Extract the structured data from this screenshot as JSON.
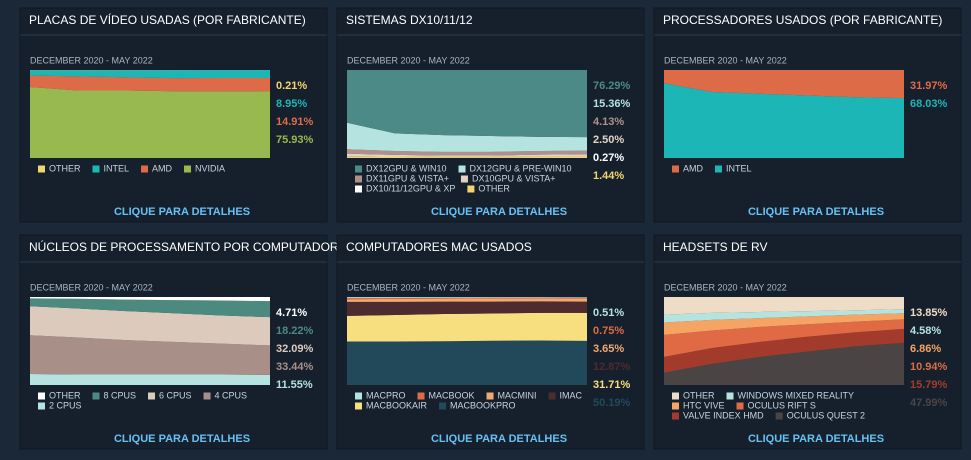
{
  "chart_data": [
    {
      "type": "stacked-area",
      "title": "PLACAS DE VÍDEO USADAS (POR FABRICANTE)",
      "subtitle": "DECEMBER 2020 - MAY 2022",
      "link": "CLIQUE PARA DETALHES",
      "categories": [
        null,
        null,
        null,
        null,
        null,
        null
      ],
      "ylim": [
        0,
        100
      ],
      "series": [
        {
          "name": "OTHER",
          "color": "#f2d66b",
          "values": [
            0.3,
            0.3,
            0.3,
            0.2,
            0.2,
            0.21
          ],
          "value_labels": [
            null,
            null,
            null,
            null,
            null,
            "0.21%"
          ]
        },
        {
          "name": "INTEL",
          "color": "#1cb6b6",
          "values": [
            6,
            7,
            8,
            9,
            8.9,
            8.95
          ],
          "value_labels": [
            null,
            null,
            null,
            null,
            null,
            "8.95%"
          ]
        },
        {
          "name": "AMD",
          "color": "#de6b47",
          "values": [
            13,
            16,
            15,
            15,
            15,
            14.91
          ],
          "value_labels": [
            null,
            null,
            null,
            null,
            null,
            "14.91%"
          ]
        },
        {
          "name": "NVIDIA",
          "color": "#98b94f",
          "values": [
            80.7,
            76.7,
            76.7,
            75.8,
            75.9,
            75.93
          ],
          "value_labels": [
            null,
            null,
            null,
            null,
            null,
            "75.93%"
          ]
        }
      ]
    },
    {
      "type": "stacked-area",
      "title": "SISTEMAS DX10/11/12",
      "subtitle": "DECEMBER 2020 - MAY 2022",
      "link": "CLIQUE PARA DETALHES",
      "categories": [
        null,
        null,
        null,
        null,
        null,
        null
      ],
      "ylim": [
        0,
        100
      ],
      "series": [
        {
          "name": "DX12GPU & WIN10",
          "color": "#4c8a87",
          "values": [
            60,
            72,
            74,
            75,
            76,
            76.29
          ],
          "value_labels": [
            null,
            null,
            null,
            null,
            null,
            "76.29%"
          ]
        },
        {
          "name": "DX12GPU & PRE-WIN10",
          "color": "#b5e3e0",
          "values": [
            30,
            20,
            19,
            18,
            16,
            15.36
          ],
          "value_labels": [
            null,
            null,
            null,
            null,
            null,
            "15.36%"
          ]
        },
        {
          "name": "DX11GPU & VISTA+",
          "color": "#b0918a",
          "values": [
            5,
            4.5,
            4.2,
            4.2,
            4.1,
            4.13
          ],
          "value_labels": [
            null,
            null,
            null,
            null,
            null,
            "4.13%"
          ]
        },
        {
          "name": "DX10GPU & VISTA+",
          "color": "#e3d3c4",
          "values": [
            3,
            2,
            1.5,
            1.5,
            2.5,
            2.5
          ],
          "value_labels": [
            null,
            null,
            null,
            null,
            null,
            "2.50%"
          ]
        },
        {
          "name": "DX10/11/12GPU & XP",
          "color": "#ffffff",
          "values": [
            0.5,
            0.4,
            0.3,
            0.3,
            0.3,
            0.27
          ],
          "value_labels": [
            null,
            null,
            null,
            null,
            null,
            "0.27%"
          ]
        },
        {
          "name": "OTHER",
          "color": "#f2d66b",
          "values": [
            1.5,
            1.1,
            1,
            1,
            1.1,
            1.44
          ],
          "value_labels": [
            null,
            null,
            null,
            null,
            null,
            "1.44%"
          ]
        }
      ]
    },
    {
      "type": "stacked-area",
      "title": "PROCESSADORES USADOS (POR FABRICANTE)",
      "subtitle": "DECEMBER 2020 - MAY 2022",
      "link": "CLIQUE PARA DETALHES",
      "categories": [
        null,
        null,
        null,
        null,
        null,
        null
      ],
      "ylim": [
        0,
        100
      ],
      "series": [
        {
          "name": "AMD",
          "color": "#de6b47",
          "values": [
            15,
            25,
            27,
            29,
            31,
            31.97
          ],
          "value_labels": [
            null,
            null,
            null,
            null,
            null,
            "31.97%"
          ]
        },
        {
          "name": "INTEL",
          "color": "#1cb6b6",
          "values": [
            85,
            75,
            73,
            71,
            69,
            68.03
          ],
          "value_labels": [
            null,
            null,
            null,
            null,
            null,
            "68.03%"
          ]
        }
      ]
    },
    {
      "type": "stacked-area",
      "title": "NÚCLEOS DE PROCESSAMENTO POR COMPUTADOR",
      "subtitle": "DECEMBER 2020 - MAY 2022",
      "link": "CLIQUE PARA DETALHES",
      "categories": [
        null,
        null,
        null,
        null,
        null,
        null
      ],
      "ylim": [
        0,
        100
      ],
      "series": [
        {
          "name": "OTHER",
          "color": "#ffffff",
          "values": [
            1.5,
            2,
            3,
            3.5,
            4,
            4.71
          ],
          "value_labels": [
            null,
            null,
            null,
            null,
            null,
            "4.71%"
          ]
        },
        {
          "name": "8 CPUS",
          "color": "#4c8a80",
          "values": [
            9,
            11,
            13,
            15,
            17,
            18.22
          ],
          "value_labels": [
            null,
            null,
            null,
            null,
            null,
            "18.22%"
          ]
        },
        {
          "name": "6 CPUS",
          "color": "#dccabd",
          "values": [
            33,
            33,
            33,
            32.5,
            32,
            32.09
          ],
          "value_labels": [
            null,
            null,
            null,
            null,
            null,
            "32.09%"
          ]
        },
        {
          "name": "4 CPUS",
          "color": "#a88f88",
          "values": [
            44,
            42,
            39,
            37,
            35,
            33.44
          ],
          "value_labels": [
            null,
            null,
            null,
            null,
            null,
            "33.44%"
          ]
        },
        {
          "name": "2 CPUS",
          "color": "#b5e3e0",
          "values": [
            12.5,
            12,
            12,
            12,
            12,
            11.55
          ],
          "value_labels": [
            null,
            null,
            null,
            null,
            null,
            "11.55%"
          ]
        }
      ]
    },
    {
      "type": "stacked-area",
      "title": "COMPUTADORES MAC USADOS",
      "subtitle": "DECEMBER 2020 - MAY 2022",
      "link": "CLIQUE PARA DETALHES",
      "categories": [
        null,
        null,
        null,
        null,
        null,
        null
      ],
      "ylim": [
        0,
        100
      ],
      "series": [
        {
          "name": "MACPRO",
          "color": "#b5e3e0",
          "values": [
            1,
            1,
            0.8,
            0.7,
            0.6,
            0.51
          ],
          "value_labels": [
            null,
            null,
            null,
            null,
            null,
            "0.51%"
          ]
        },
        {
          "name": "MACBOOK",
          "color": "#de6b47",
          "values": [
            1.5,
            1.2,
            1,
            0.9,
            0.8,
            0.75
          ],
          "value_labels": [
            null,
            null,
            null,
            null,
            null,
            "0.75%"
          ]
        },
        {
          "name": "MACMINI",
          "color": "#f2a872",
          "values": [
            3,
            3.3,
            3.5,
            3.6,
            3.6,
            3.65
          ],
          "value_labels": [
            null,
            null,
            null,
            null,
            null,
            "3.65%"
          ]
        },
        {
          "name": "IMAC",
          "color": "#4d2b2e",
          "values": [
            16,
            15,
            14,
            13.5,
            13,
            12.87
          ],
          "value_labels": [
            null,
            null,
            null,
            null,
            null,
            "12.87%"
          ]
        },
        {
          "name": "MACBOOKAIR",
          "color": "#f7de7e",
          "values": [
            29,
            30,
            31,
            31,
            31.5,
            31.71
          ],
          "value_labels": [
            null,
            null,
            null,
            null,
            null,
            "31.71%"
          ]
        },
        {
          "name": "MACBOOKPRO",
          "color": "#21495a",
          "values": [
            49.5,
            49.5,
            49.7,
            50.3,
            50.5,
            50.19
          ],
          "value_labels": [
            null,
            null,
            null,
            null,
            null,
            "50.19%"
          ]
        }
      ]
    },
    {
      "type": "stacked-area",
      "title": "HEADSETS DE RV",
      "subtitle": "DECEMBER 2020 - MAY 2022",
      "link": "CLIQUE PARA DETALHES",
      "categories": [
        null,
        null,
        null,
        null,
        null,
        null
      ],
      "ylim": [
        0,
        100
      ],
      "series": [
        {
          "name": "OTHER",
          "color": "#efdcc7",
          "values": [
            20,
            18,
            17,
            16,
            15,
            13.85
          ],
          "value_labels": [
            null,
            null,
            null,
            null,
            null,
            "13.85%"
          ]
        },
        {
          "name": "WINDOWS MIXED REALITY",
          "color": "#b5e3e0",
          "values": [
            9,
            8,
            7,
            6,
            5,
            4.58
          ],
          "value_labels": [
            null,
            null,
            null,
            null,
            null,
            "4.58%"
          ]
        },
        {
          "name": "HTC VIVE",
          "color": "#f5a464",
          "values": [
            14,
            12,
            10,
            9,
            8,
            6.86
          ],
          "value_labels": [
            null,
            null,
            null,
            null,
            null,
            "6.86%"
          ]
        },
        {
          "name": "OCULUS RIFT S",
          "color": "#e06a44",
          "values": [
            25,
            20,
            17,
            14,
            12,
            10.94
          ],
          "value_labels": [
            null,
            null,
            null,
            null,
            null,
            "10.94%"
          ]
        },
        {
          "name": "VALVE INDEX HMD",
          "color": "#a33b2c",
          "values": [
            18,
            18,
            17,
            17,
            16,
            15.79
          ],
          "value_labels": [
            null,
            null,
            null,
            null,
            null,
            "15.79%"
          ]
        },
        {
          "name": "OCULUS QUEST 2",
          "color": "#4a4445",
          "values": [
            14,
            24,
            32,
            38,
            44,
            47.99
          ],
          "value_labels": [
            null,
            null,
            null,
            null,
            null,
            "47.99%"
          ]
        }
      ]
    }
  ]
}
